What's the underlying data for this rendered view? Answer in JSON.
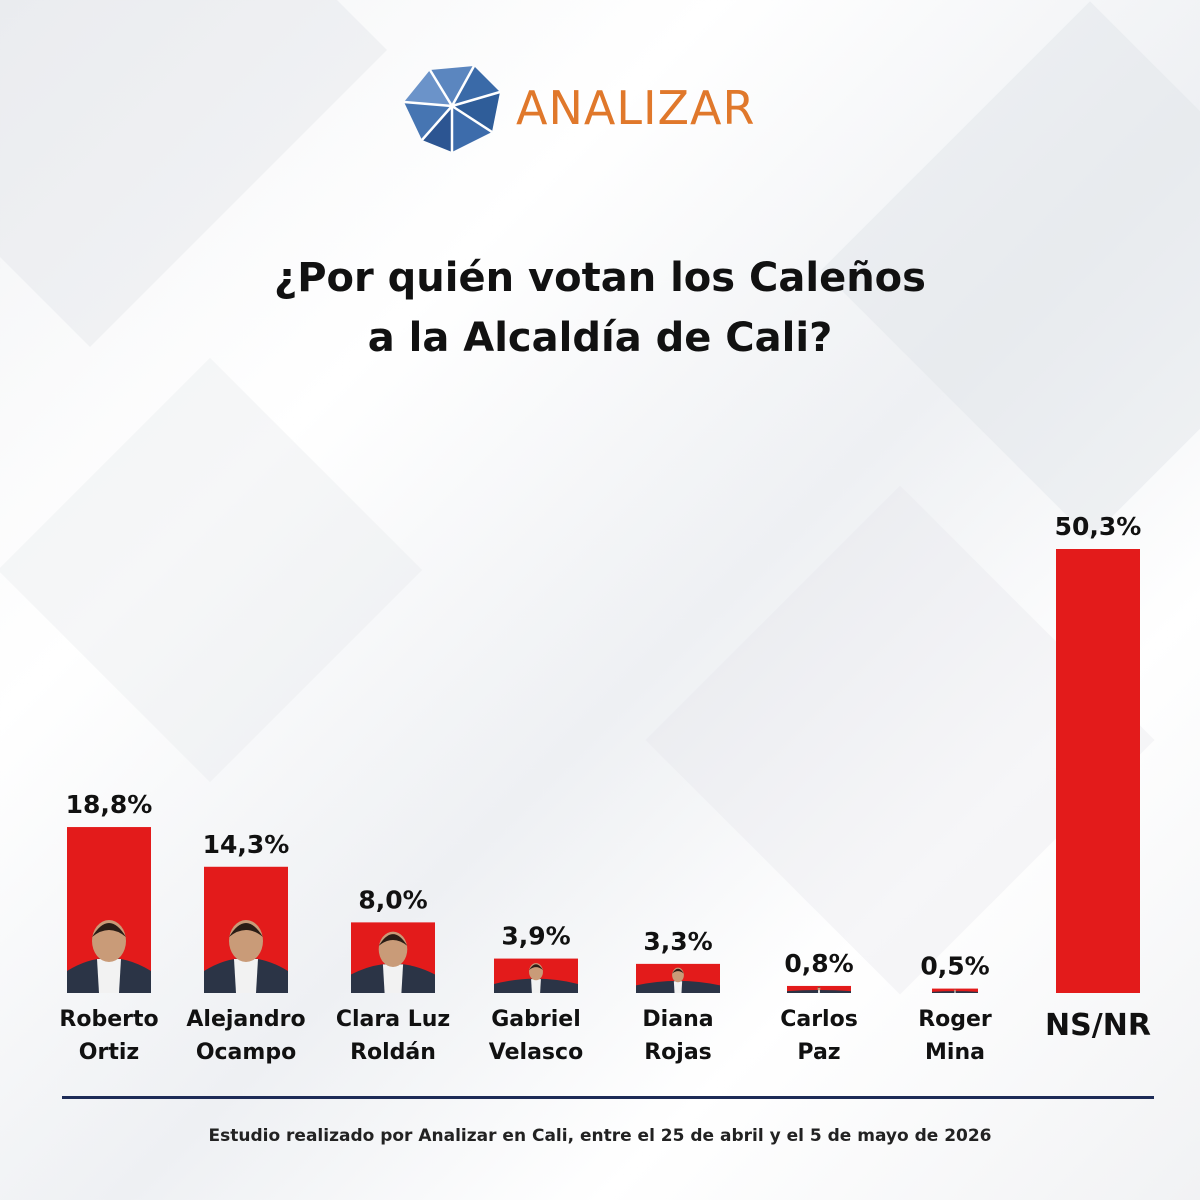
{
  "brand": {
    "name": "ANALIZAR",
    "text_color": "#e0782b",
    "icon": "faceted-gem-logo-icon",
    "icon_color": "#3a6aa8"
  },
  "title": {
    "line1": "¿Por quién votan los Caleños",
    "line2": "a la Alcaldía de Cali?"
  },
  "chart_data": {
    "type": "bar",
    "bar_color": "#e31b1b",
    "ylim": [
      0,
      55
    ],
    "categories": [
      [
        "Roberto",
        "Ortiz"
      ],
      [
        "Alejandro",
        "Ocampo"
      ],
      [
        "Clara Luz",
        "Roldán"
      ],
      [
        "Gabriel",
        "Velasco"
      ],
      [
        "Diana",
        "Rojas"
      ],
      [
        "Carlos",
        "Paz"
      ],
      [
        "Roger",
        "Mina"
      ],
      [
        "NS/NR"
      ]
    ],
    "values": [
      18.8,
      14.3,
      8.0,
      3.9,
      3.3,
      0.8,
      0.5,
      50.3
    ],
    "value_labels": [
      "18,8%",
      "14,3%",
      "8,0%",
      "3,9%",
      "3,3%",
      "0,8%",
      "0,5%",
      "50,3%"
    ],
    "candidate_photos": [
      "portrait",
      "portrait",
      "portrait",
      "portrait",
      "portrait",
      "portrait",
      "portrait",
      "none"
    ]
  },
  "footer": {
    "note": "Estudio realizado por Analizar en Cali, entre el 25 de abril y el 5 de mayo de 2026",
    "rule_color": "#1d2b57"
  }
}
